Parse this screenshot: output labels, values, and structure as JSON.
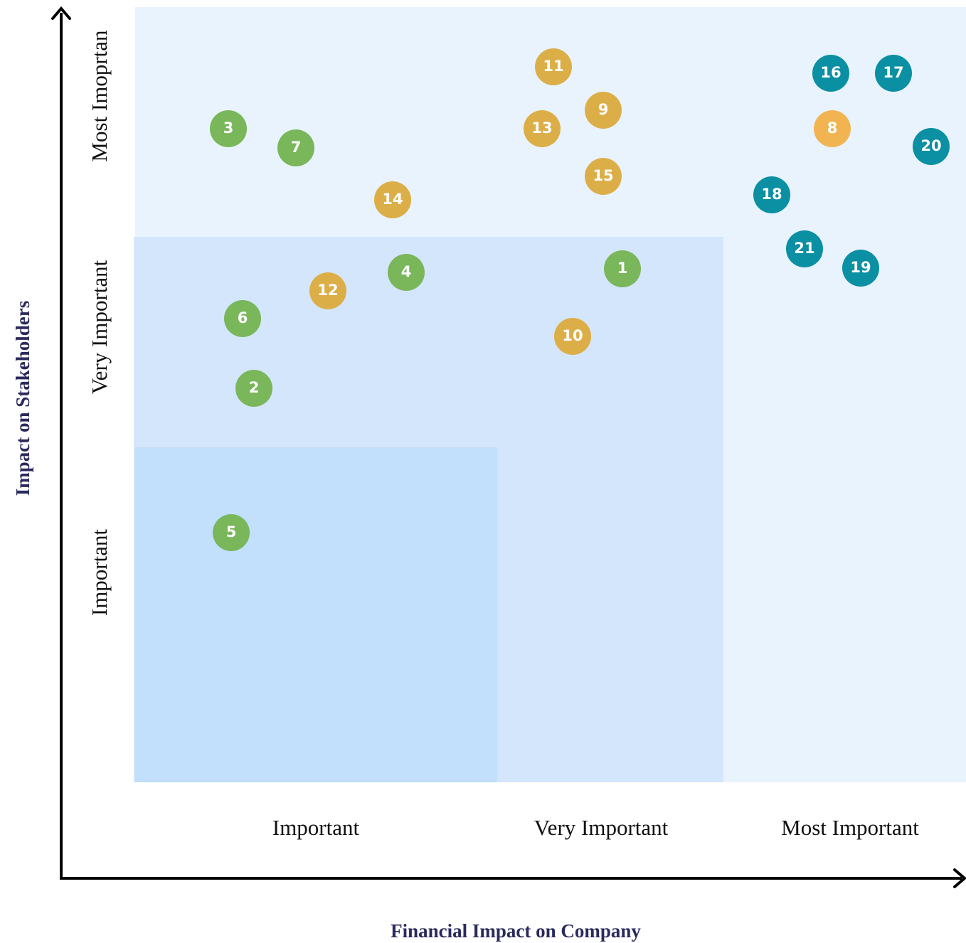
{
  "y_axis_title": "Impact on Stakeholders",
  "x_axis_title": "Financial Impact on Company",
  "y_levels": [
    "Important",
    "Very Important",
    "Most Imoprtan"
  ],
  "x_levels": [
    "Important",
    "Very Important",
    "Most Important"
  ],
  "nodes": [
    {
      "label": "1"
    },
    {
      "label": "2"
    },
    {
      "label": "3"
    },
    {
      "label": "4"
    },
    {
      "label": "5"
    },
    {
      "label": "6"
    },
    {
      "label": "7"
    },
    {
      "label": "8"
    },
    {
      "label": "9"
    },
    {
      "label": "10"
    },
    {
      "label": "11"
    },
    {
      "label": "12"
    },
    {
      "label": "13"
    },
    {
      "label": "14"
    },
    {
      "label": "15"
    },
    {
      "label": "16"
    },
    {
      "label": "17"
    },
    {
      "label": "18"
    },
    {
      "label": "19"
    },
    {
      "label": "20"
    },
    {
      "label": "21"
    }
  ]
}
